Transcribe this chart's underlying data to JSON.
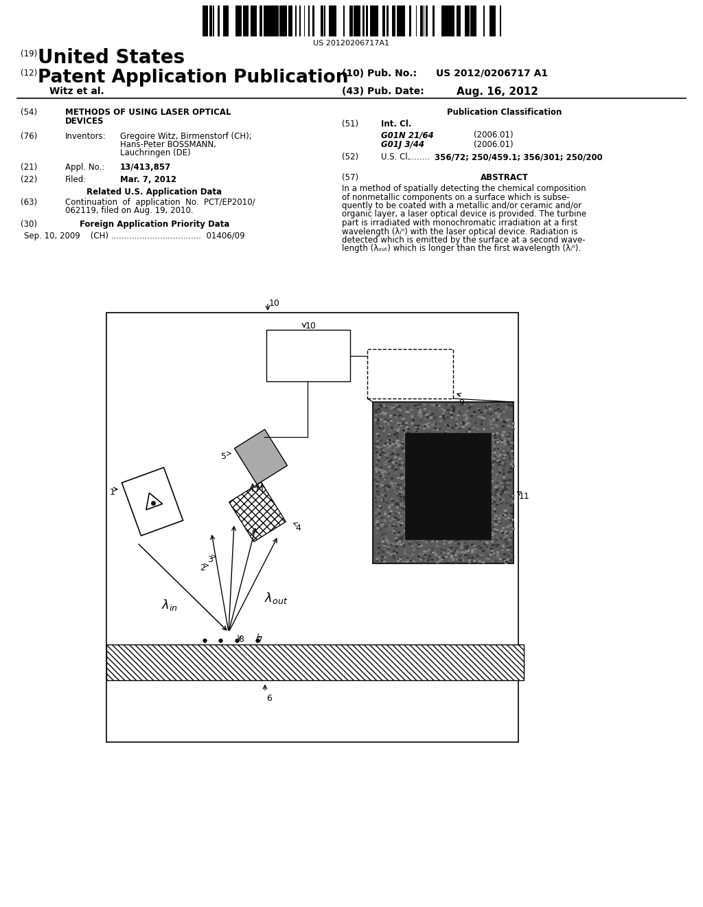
{
  "background_color": "#ffffff",
  "barcode_text": "US 20120206717A1",
  "patent_number_label": "(19)",
  "patent_title1": "United States",
  "patent_type_label": "(12)",
  "patent_type": "Patent Application Publication",
  "pub_no_label": "(10) Pub. No.:",
  "pub_no": "US 2012/0206717 A1",
  "pub_date_label": "(43) Pub. Date:",
  "pub_date": "Aug. 16, 2012",
  "author": "Witz et al.",
  "field54_label": "(54)",
  "field76_label": "(76)",
  "field76_key": "Inventors:",
  "field21_label": "(21)",
  "field21_key": "Appl. No.:",
  "field21_val": "13/413,857",
  "field22_label": "(22)",
  "field22_key": "Filed:",
  "field22_val": "Mar. 7, 2012",
  "related_us_data": "Related U.S. Application Data",
  "field63_label": "(63)",
  "field30_label": "(30)",
  "field30_key": "Foreign Application Priority Data",
  "field30_val": "Sep. 10, 2009    (CH) ...................................  01406/09",
  "pub_class_title": "Publication Classification",
  "field51_label": "(51)",
  "field51_key": "Int. Cl.",
  "field51_val1": "G01N 21/64",
  "field51_val1b": "(2006.01)",
  "field51_val2": "G01J 3/44",
  "field51_val2b": "(2006.01)",
  "field52_label": "(52)",
  "field52_key": "U.S. Cl.",
  "field52_dots": ".........",
  "field52_val": "356/72; 250/459.1; 356/301; 250/200",
  "field57_label": "(57)",
  "field57_key": "ABSTRACT"
}
